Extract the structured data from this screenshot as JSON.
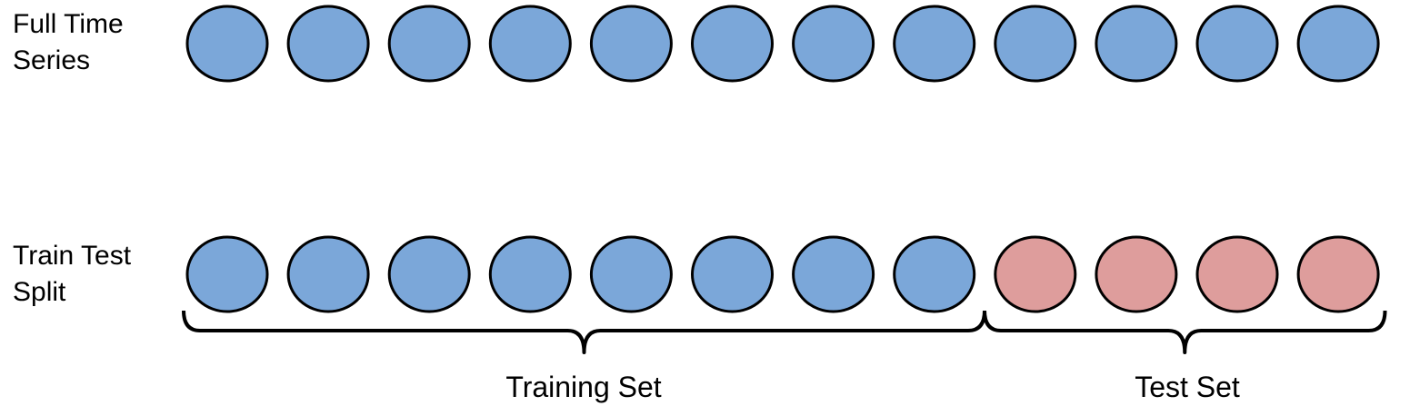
{
  "rows": {
    "full_series": {
      "label": "Full Time\nSeries",
      "points": [
        "train",
        "train",
        "train",
        "train",
        "train",
        "train",
        "train",
        "train",
        "train",
        "train",
        "train",
        "train"
      ]
    },
    "train_test_split": {
      "label": "Train Test\nSplit",
      "points": [
        "train",
        "train",
        "train",
        "train",
        "train",
        "train",
        "train",
        "train",
        "test",
        "test",
        "test",
        "test"
      ]
    }
  },
  "groups": {
    "training": {
      "label": "Training Set",
      "count": 8
    },
    "test": {
      "label": "Test Set",
      "count": 4
    }
  },
  "colors": {
    "train": "#7ba7d9",
    "test": "#de9d9c",
    "stroke": "#000000"
  }
}
